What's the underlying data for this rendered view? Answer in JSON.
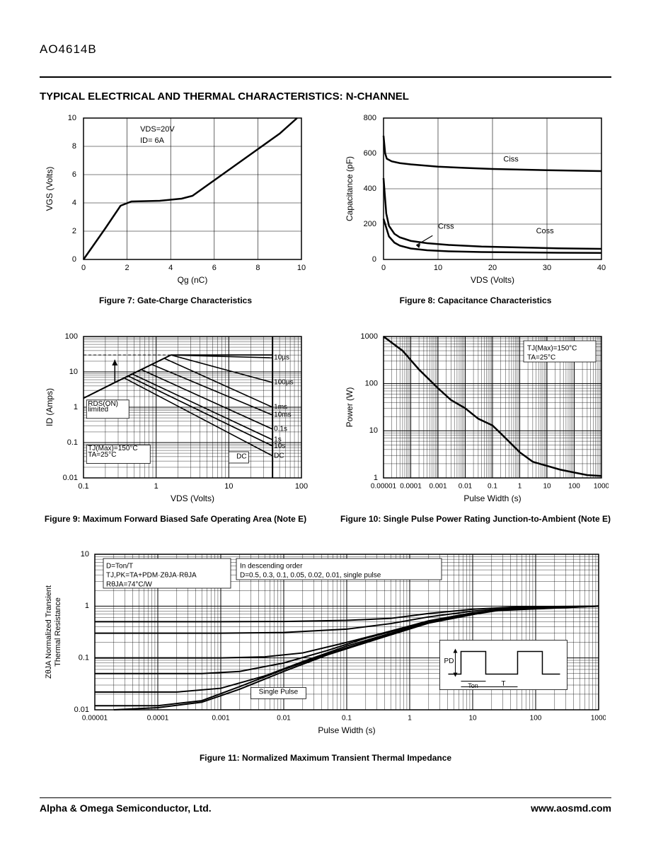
{
  "part_number": "AO4614B",
  "section_title": "TYPICAL ELECTRICAL AND THERMAL CHARACTERISTICS: N-CHANNEL",
  "footer_left": "Alpha & Omega Semiconductor, Ltd.",
  "footer_right": "www.aosmd.com",
  "fig7": {
    "caption": "Figure 7: Gate-Charge Characteristics",
    "xlabel": "Qg (nC)",
    "ylabel": "VGS (Volts)",
    "xlim": [
      0,
      10
    ],
    "ylim": [
      0,
      10
    ],
    "xtick_step": 2,
    "ytick_step": 2,
    "line_color": "#000",
    "line_width": 2.5,
    "annotation": [
      "VDS=20V",
      "ID= 6A"
    ],
    "data": [
      [
        0,
        0
      ],
      [
        1,
        2.2
      ],
      [
        1.7,
        3.8
      ],
      [
        2.2,
        4.1
      ],
      [
        3.5,
        4.15
      ],
      [
        4.5,
        4.3
      ],
      [
        5,
        4.5
      ],
      [
        6,
        5.6
      ],
      [
        7,
        6.7
      ],
      [
        8,
        7.8
      ],
      [
        9,
        8.9
      ],
      [
        9.8,
        10
      ]
    ]
  },
  "fig8": {
    "caption": "Figure 8: Capacitance Characteristics",
    "xlabel": "VDS (Volts)",
    "ylabel": "Capacitance (pF)",
    "xlim": [
      0,
      40
    ],
    "ylim": [
      0,
      800
    ],
    "xtick_step": 10,
    "ytick_step": 200,
    "line_color": "#000",
    "line_width": 2.5,
    "series": [
      {
        "label": "Ciss",
        "label_pos": [
          22,
          565
        ],
        "data": [
          [
            0,
            700
          ],
          [
            0.3,
            600
          ],
          [
            0.6,
            570
          ],
          [
            1.5,
            555
          ],
          [
            3,
            545
          ],
          [
            5,
            538
          ],
          [
            10,
            525
          ],
          [
            15,
            518
          ],
          [
            20,
            512
          ],
          [
            30,
            505
          ],
          [
            40,
            500
          ]
        ]
      },
      {
        "label": "Coss",
        "label_pos": [
          28,
          160
        ],
        "data": [
          [
            0,
            460
          ],
          [
            0.5,
            260
          ],
          [
            1,
            190
          ],
          [
            2,
            145
          ],
          [
            3,
            125
          ],
          [
            5,
            105
          ],
          [
            8,
            92
          ],
          [
            12,
            82
          ],
          [
            18,
            73
          ],
          [
            25,
            68
          ],
          [
            32,
            63
          ],
          [
            40,
            60
          ]
        ]
      },
      {
        "label": "Crss",
        "label_pos": [
          10,
          185
        ],
        "data": [
          [
            0,
            230
          ],
          [
            1,
            130
          ],
          [
            2,
            95
          ],
          [
            3,
            78
          ],
          [
            5,
            62
          ],
          [
            8,
            52
          ],
          [
            12,
            46
          ],
          [
            18,
            42
          ],
          [
            25,
            40
          ],
          [
            32,
            38
          ],
          [
            40,
            37
          ]
        ]
      }
    ],
    "arrow": {
      "from": [
        9,
        135
      ],
      "to": [
        6,
        80
      ]
    }
  },
  "fig9": {
    "caption": "Figure 9: Maximum Forward Biased Safe Operating Area (Note E)",
    "xlabel": "VDS (Volts)",
    "ylabel": "ID (Amps)",
    "xlog": [
      0.1,
      100
    ],
    "ylog": [
      0.01,
      100
    ],
    "line_color": "#000",
    "line_width": 1.8,
    "annotations": {
      "rds": "RDS(ON) limited",
      "rds_pos": [
        0.12,
        1
      ],
      "temp": [
        "TJ(Max)=150°C",
        "TA=25°C"
      ],
      "temp_pos": [
        0.12,
        0.06
      ],
      "dc": "DC",
      "dc_pos": [
        14,
        0.045
      ]
    },
    "upflat": 30,
    "rds_line": [
      [
        0.1,
        1.8
      ],
      [
        0.27,
        5
      ],
      [
        1.6,
        30
      ]
    ],
    "dashed_30": true,
    "vmax": 40,
    "curves": [
      {
        "label": "10µs",
        "start": [
          1.6,
          30
        ],
        "end": [
          40,
          25
        ]
      },
      {
        "label": "100µs",
        "start": [
          1.6,
          30
        ],
        "end": [
          40,
          5
        ]
      },
      {
        "label": "1ms",
        "start": [
          1.3,
          24
        ],
        "end": [
          40,
          1.0
        ]
      },
      {
        "label": "10ms",
        "start": [
          0.88,
          16
        ],
        "end": [
          40,
          0.6
        ]
      },
      {
        "label": "0.1s",
        "start": [
          0.63,
          11.5
        ],
        "end": [
          40,
          0.24
        ]
      },
      {
        "label": "1s",
        "start": [
          0.48,
          8.5
        ],
        "end": [
          40,
          0.12
        ]
      },
      {
        "label": "10s",
        "start": [
          0.42,
          7.5
        ],
        "end": [
          40,
          0.08
        ]
      },
      {
        "label": "DC",
        "start": [
          0.37,
          6.6
        ],
        "end": [
          40,
          0.042
        ]
      }
    ]
  },
  "fig10": {
    "caption": "Figure 10: Single Pulse Power Rating Junction-to-Ambient (Note E)",
    "xlabel": "Pulse Width (s)",
    "ylabel": "Power (W)",
    "xlog": [
      1e-05,
      1000
    ],
    "ylog": [
      1,
      1000
    ],
    "line_color": "#000",
    "line_width": 2.5,
    "annotation": [
      "TJ(Max)=150°C",
      "TA=25°C"
    ],
    "data": [
      [
        1e-05,
        1000
      ],
      [
        5e-05,
        500
      ],
      [
        0.0002,
        200
      ],
      [
        0.001,
        80
      ],
      [
        0.003,
        45
      ],
      [
        0.01,
        30
      ],
      [
        0.03,
        18
      ],
      [
        0.1,
        13
      ],
      [
        0.3,
        7
      ],
      [
        1,
        3.5
      ],
      [
        3,
        2.2
      ],
      [
        10,
        1.8
      ],
      [
        30,
        1.5
      ],
      [
        100,
        1.3
      ],
      [
        300,
        1.15
      ],
      [
        1000,
        1.1
      ]
    ]
  },
  "fig11": {
    "caption": "Figure 11: Normalized Maximum Transient Thermal Impedance",
    "xlabel": "Pulse Width (s)",
    "ylabel": "ZθJA Normalized Transient Thermal Resistance",
    "xlog": [
      1e-05,
      1000
    ],
    "ylog": [
      0.01,
      10
    ],
    "line_color": "#000",
    "line_width": 2,
    "notes_left": [
      "D=Ton/T",
      "TJ,PK=TA+PDM·ZθJA·RθJA",
      "RθJA=74°C/W"
    ],
    "notes_right": [
      "In descending order",
      "D=0.5, 0.3, 0.1, 0.05, 0.02, 0.01, single pulse"
    ],
    "single_pulse_label": "Single Pulse",
    "waveform_labels": {
      "pd": "PD",
      "ton": "Ton",
      "t": "T"
    },
    "curves": [
      {
        "flat": 0.5,
        "data": [
          [
            1e-05,
            0.5
          ],
          [
            0.001,
            0.5
          ],
          [
            0.01,
            0.505
          ],
          [
            0.1,
            0.53
          ],
          [
            0.5,
            0.58
          ],
          [
            2,
            0.72
          ],
          [
            10,
            0.87
          ],
          [
            50,
            0.96
          ],
          [
            1000,
            1.0
          ]
        ]
      },
      {
        "flat": 0.3,
        "data": [
          [
            1e-05,
            0.3
          ],
          [
            0.001,
            0.3
          ],
          [
            0.01,
            0.31
          ],
          [
            0.1,
            0.36
          ],
          [
            0.5,
            0.46
          ],
          [
            2,
            0.62
          ],
          [
            10,
            0.8
          ],
          [
            50,
            0.93
          ],
          [
            1000,
            1.0
          ]
        ]
      },
      {
        "flat": 0.1,
        "data": [
          [
            1e-05,
            0.1
          ],
          [
            0.001,
            0.1
          ],
          [
            0.005,
            0.105
          ],
          [
            0.02,
            0.125
          ],
          [
            0.1,
            0.2
          ],
          [
            0.5,
            0.33
          ],
          [
            2,
            0.52
          ],
          [
            10,
            0.74
          ],
          [
            50,
            0.9
          ],
          [
            1000,
            1.0
          ]
        ]
      },
      {
        "flat": 0.05,
        "data": [
          [
            1e-05,
            0.05
          ],
          [
            0.0005,
            0.05
          ],
          [
            0.002,
            0.055
          ],
          [
            0.01,
            0.08
          ],
          [
            0.05,
            0.14
          ],
          [
            0.2,
            0.24
          ],
          [
            1,
            0.4
          ],
          [
            5,
            0.64
          ],
          [
            30,
            0.86
          ],
          [
            1000,
            1.0
          ]
        ]
      },
      {
        "flat": 0.022,
        "data": [
          [
            1e-05,
            0.022
          ],
          [
            0.0002,
            0.022
          ],
          [
            0.001,
            0.026
          ],
          [
            0.005,
            0.045
          ],
          [
            0.02,
            0.085
          ],
          [
            0.1,
            0.17
          ],
          [
            0.5,
            0.3
          ],
          [
            3,
            0.55
          ],
          [
            30,
            0.85
          ],
          [
            1000,
            1.0
          ]
        ]
      },
      {
        "flat": 0.012,
        "data": [
          [
            1e-05,
            0.012
          ],
          [
            0.0001,
            0.012
          ],
          [
            0.0005,
            0.015
          ],
          [
            0.002,
            0.028
          ],
          [
            0.01,
            0.06
          ],
          [
            0.05,
            0.12
          ],
          [
            0.3,
            0.24
          ],
          [
            2,
            0.48
          ],
          [
            20,
            0.82
          ],
          [
            1000,
            1.0
          ]
        ]
      },
      {
        "flat": null,
        "data": [
          [
            2e-05,
            0.01
          ],
          [
            0.0001,
            0.011
          ],
          [
            0.0005,
            0.014
          ],
          [
            0.002,
            0.025
          ],
          [
            0.01,
            0.055
          ],
          [
            0.05,
            0.115
          ],
          [
            0.3,
            0.23
          ],
          [
            2,
            0.47
          ],
          [
            20,
            0.81
          ],
          [
            1000,
            1.0
          ]
        ]
      }
    ]
  },
  "chart_font_size": 11,
  "axis_font_size": 12,
  "tick_font_size": 11,
  "grid_color": "#000"
}
